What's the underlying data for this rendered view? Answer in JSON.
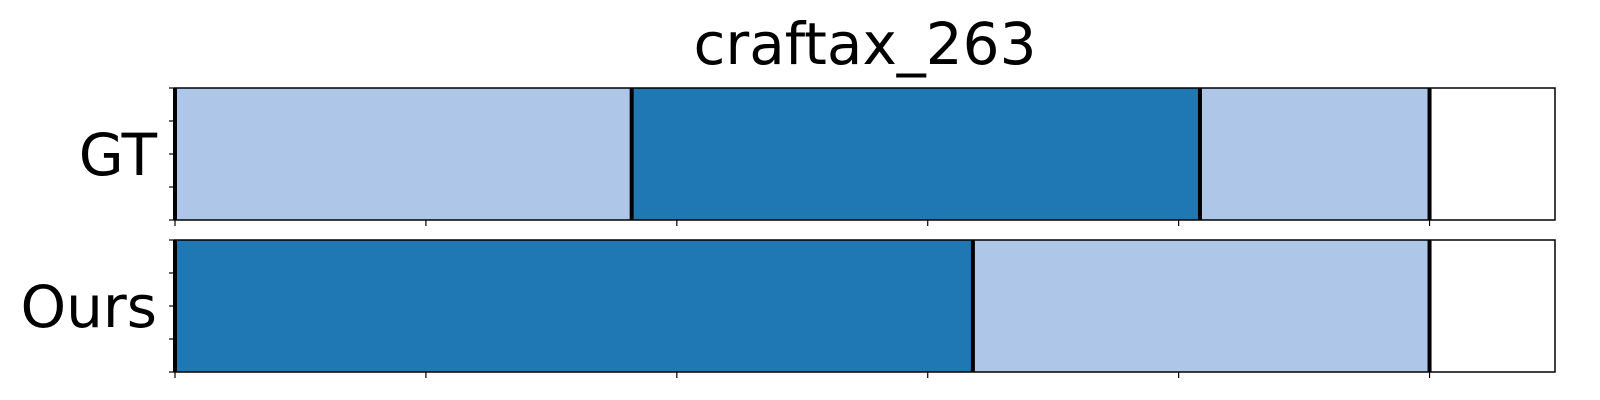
{
  "chart_data": {
    "type": "segmentation-timeline",
    "title": "craftax_263",
    "xlim": [
      0,
      1100
    ],
    "x_ticks": [
      0,
      200,
      400,
      600,
      800,
      1000
    ],
    "y_ticks_per_row": 5,
    "grid": false,
    "rows": [
      {
        "label": "GT",
        "segments": [
          {
            "start": 0,
            "end": 364,
            "class": "light"
          },
          {
            "start": 364,
            "end": 817,
            "class": "dark"
          },
          {
            "start": 817,
            "end": 1000,
            "class": "light"
          }
        ],
        "boundaries": [
          0,
          364,
          817,
          1000
        ]
      },
      {
        "label": "Ours",
        "segments": [
          {
            "start": 0,
            "end": 636,
            "class": "dark"
          },
          {
            "start": 636,
            "end": 1000,
            "class": "light"
          }
        ],
        "boundaries": [
          0,
          636,
          1000
        ]
      }
    ],
    "colors": {
      "light": "#aec7e8",
      "dark": "#1f77b4",
      "boundary": "#000000",
      "frame": "#000000"
    }
  }
}
